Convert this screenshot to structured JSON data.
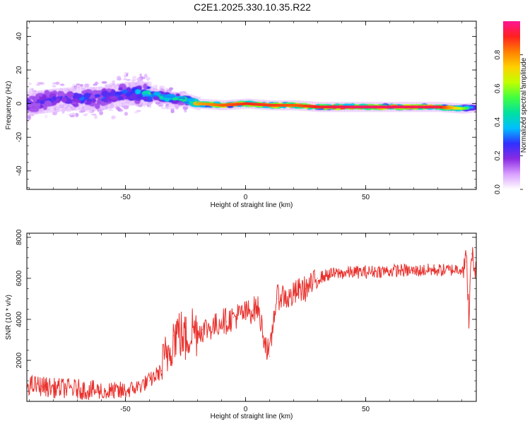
{
  "title": "C2E1.2025.330.10.35.R22",
  "colors": {
    "snr_line": "#e8302c",
    "colormap": [
      "#ffffff",
      "#d9a0ff",
      "#8a2be2",
      "#3030ff",
      "#00bfff",
      "#00e0a0",
      "#40ff40",
      "#c0ff00",
      "#ffd000",
      "#ff8000",
      "#ff2020",
      "#ff1493"
    ]
  },
  "chart_data": [
    {
      "type": "heatmap",
      "xlabel": "Height of straight line (km)",
      "ylabel": "Frequency (Hz)",
      "xlim": [
        -91,
        96
      ],
      "ylim": [
        -51,
        49
      ],
      "xticks": [
        -50,
        0,
        50
      ],
      "yticks": [
        -40,
        -20,
        0,
        20,
        40
      ],
      "colorbar": {
        "label": "Normalized spectral amplitude",
        "range": [
          0,
          1
        ],
        "ticks": [
          0.0,
          0.2,
          0.4,
          0.6,
          0.8
        ]
      },
      "ridge": {
        "x": [
          -91,
          -80,
          -70,
          -60,
          -50,
          -40,
          -35,
          -30,
          -25,
          -20,
          -10,
          0,
          10,
          20,
          30,
          40,
          50,
          60,
          70,
          80,
          90,
          96
        ],
        "freq_hz": [
          0,
          2,
          3,
          3,
          6,
          6,
          4,
          3,
          2,
          0,
          -1,
          0,
          -1,
          -1,
          -2,
          -2,
          -2,
          -2,
          -2,
          -2,
          -3,
          -2
        ],
        "amplitude": [
          0.28,
          0.3,
          0.32,
          0.33,
          0.35,
          0.5,
          0.55,
          0.6,
          0.65,
          0.78,
          0.85,
          0.9,
          0.88,
          0.85,
          0.92,
          0.95,
          0.96,
          0.96,
          0.95,
          0.94,
          0.6,
          0.3
        ]
      }
    },
    {
      "type": "line",
      "xlabel": "Height of straight line (km)",
      "ylabel": "SNR (10 * v/v)",
      "xlim": [
        -91,
        96
      ],
      "ylim": [
        0,
        8200
      ],
      "xticks": [
        -50,
        0,
        50
      ],
      "yticks": [
        2000,
        4000,
        6000,
        8000
      ],
      "series": [
        {
          "x": [
            -91,
            -85,
            -80,
            -75,
            -70,
            -65,
            -60,
            -55,
            -50,
            -45,
            -40,
            -35,
            -32,
            -30,
            -28,
            -25,
            -22,
            -20,
            -18,
            -15,
            -12,
            -10,
            -8,
            -5,
            -3,
            0,
            3,
            5,
            8,
            10,
            12,
            13,
            15,
            18,
            20,
            22,
            25,
            28,
            30,
            35,
            40,
            45,
            50,
            55,
            60,
            65,
            70,
            75,
            80,
            85,
            90,
            92,
            93,
            94,
            96
          ],
          "y": [
            800,
            750,
            650,
            650,
            600,
            550,
            500,
            450,
            500,
            700,
            1000,
            1500,
            2500,
            3200,
            3400,
            3000,
            3600,
            3400,
            3500,
            3600,
            3700,
            4000,
            3900,
            4100,
            4200,
            4300,
            4450,
            4600,
            3000,
            2200,
            4400,
            5000,
            5200,
            5000,
            5200,
            5400,
            5500,
            5700,
            6000,
            6200,
            6250,
            6300,
            6300,
            6350,
            6350,
            6400,
            6350,
            6400,
            6400,
            6400,
            6500,
            6800,
            4000,
            7200,
            6200
          ]
        }
      ]
    }
  ]
}
